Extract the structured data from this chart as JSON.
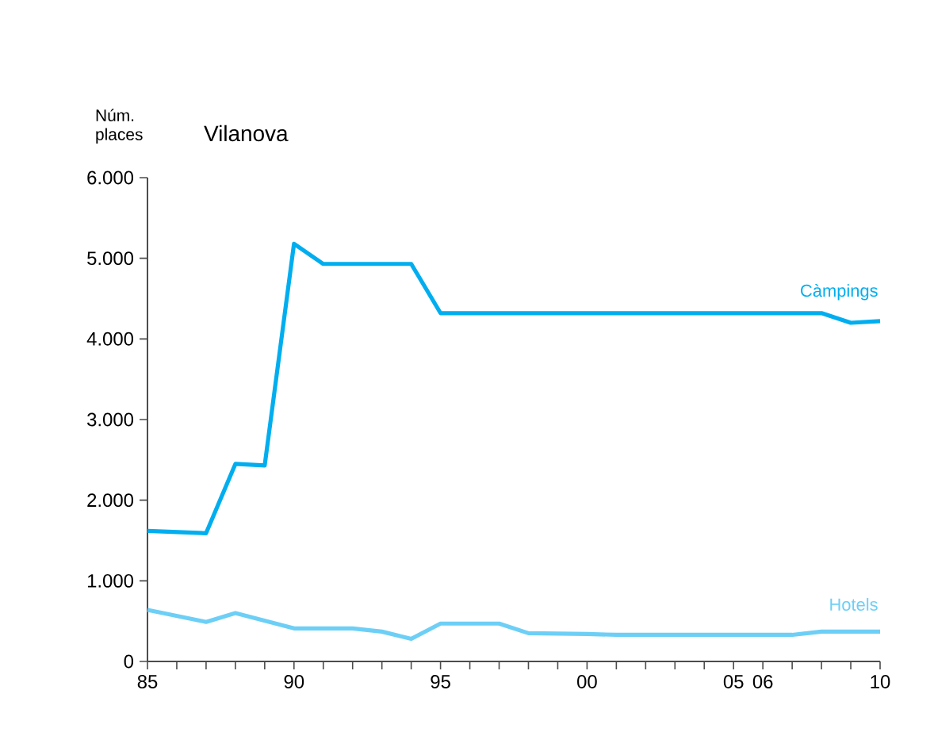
{
  "chart_data": {
    "type": "line",
    "title": "Vilanova",
    "ylabel": "Núm. places",
    "x": [
      1985,
      1987,
      1988,
      1989,
      1990,
      1991,
      1994,
      1995,
      2008,
      2009,
      2010
    ],
    "series": [
      {
        "name": "Càmpings",
        "color": "#00aeef",
        "values": [
          1620,
          1590,
          2450,
          2430,
          5180,
          4930,
          4930,
          4320,
          4320,
          4200,
          4220
        ]
      },
      {
        "name": "Hotels",
        "color": "#6dcff6",
        "x": [
          1985,
          1987,
          1988,
          1990,
          1992,
          1993,
          1994,
          1995,
          1997,
          1998,
          2000,
          2001,
          2007,
          2008,
          2010
        ],
        "values": [
          640,
          490,
          600,
          410,
          410,
          370,
          280,
          470,
          470,
          350,
          340,
          330,
          330,
          370,
          370
        ]
      }
    ],
    "xlim": [
      1985,
      2010
    ],
    "xticks": [
      {
        "value": 1985,
        "label": "85"
      },
      {
        "value": 1986,
        "label": null
      },
      {
        "value": 1987,
        "label": null
      },
      {
        "value": 1988,
        "label": null
      },
      {
        "value": 1989,
        "label": null
      },
      {
        "value": 1990,
        "label": "90"
      },
      {
        "value": 1991,
        "label": null
      },
      {
        "value": 1992,
        "label": null
      },
      {
        "value": 1993,
        "label": null
      },
      {
        "value": 1994,
        "label": null
      },
      {
        "value": 1995,
        "label": "95"
      },
      {
        "value": 1996,
        "label": null
      },
      {
        "value": 1997,
        "label": null
      },
      {
        "value": 1998,
        "label": null
      },
      {
        "value": 1999,
        "label": null
      },
      {
        "value": 2000,
        "label": "00"
      },
      {
        "value": 2001,
        "label": null
      },
      {
        "value": 2002,
        "label": null
      },
      {
        "value": 2003,
        "label": null
      },
      {
        "value": 2004,
        "label": null
      },
      {
        "value": 2005,
        "label": "05"
      },
      {
        "value": 2006,
        "label": "06"
      },
      {
        "value": 2007,
        "label": null
      },
      {
        "value": 2008,
        "label": null
      },
      {
        "value": 2009,
        "label": null
      },
      {
        "value": 2010,
        "label": "10"
      }
    ],
    "ylim": [
      0,
      6000
    ],
    "yticks": [
      0,
      {
        "value": 1000,
        "label": "1.000"
      },
      {
        "value": 2000,
        "label": "2.000"
      },
      {
        "value": 3000,
        "label": "3.000"
      },
      {
        "value": 4000,
        "label": "4.000"
      },
      {
        "value": 5000,
        "label": "5.000"
      },
      {
        "value": 6000,
        "label": "6.000"
      }
    ],
    "grid": false,
    "legend": false,
    "marker": "none",
    "line_style": "solid"
  }
}
